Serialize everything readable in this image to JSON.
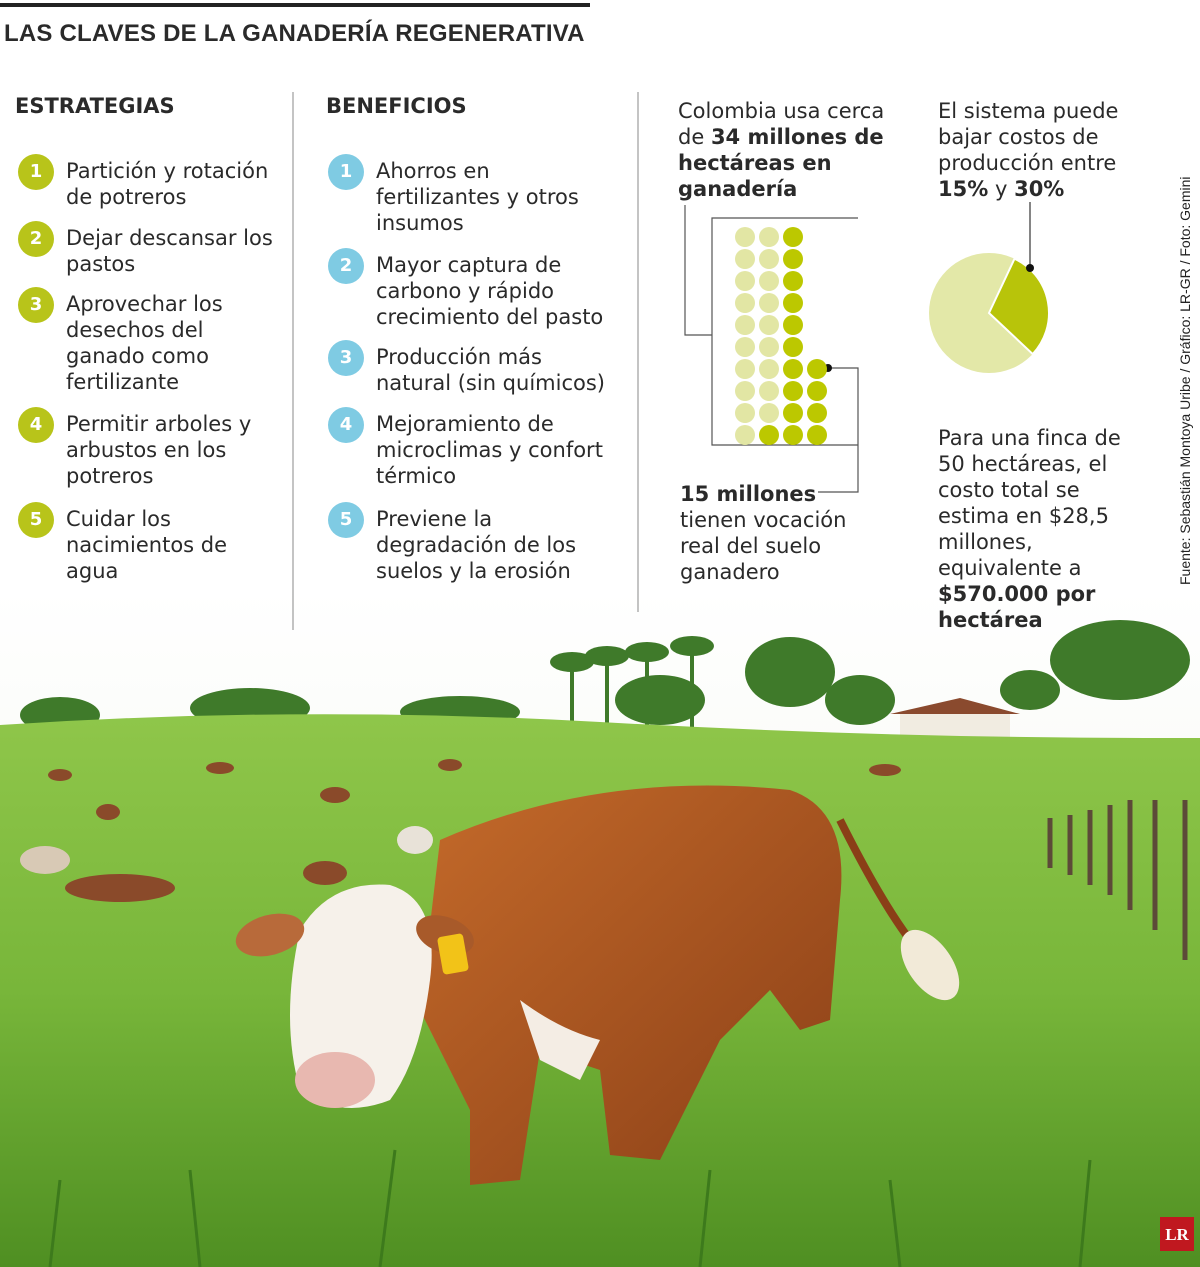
{
  "title": "LAS CLAVES DE LA GANADERÍA REGENERATIVA",
  "strategies": {
    "heading": "ESTRATEGIAS",
    "items": [
      {
        "number": "1",
        "text": "Partición y rotación de potreros"
      },
      {
        "number": "2",
        "text": "Dejar descansar los pastos"
      },
      {
        "number": "3",
        "text": "Aprovechar los desechos del ganado como fertilizante"
      },
      {
        "number": "4",
        "text": "Permitir arboles y arbustos en los potreros"
      },
      {
        "number": "5",
        "text": "Cuidar los nacimientos de agua"
      }
    ]
  },
  "benefits": {
    "heading": "BENEFICIOS",
    "items": [
      {
        "number": "1",
        "text": "Ahorros en fertilizantes y otros insumos"
      },
      {
        "number": "2",
        "text": "Mayor captura de carbono y rápido crecimiento del pasto"
      },
      {
        "number": "3",
        "text": "Producción más natural (sin químicos)"
      },
      {
        "number": "4",
        "text": "Mejoramiento de microclimas y confort térmico"
      },
      {
        "number": "5",
        "text": "Previene la degradación de los suelos y la erosión"
      }
    ]
  },
  "land": {
    "text": "Colombia usa cerca de",
    "highlight": "34 millones de hectáreas en ganadería",
    "total_dots": 34,
    "suitable": "15 millones",
    "suitable_text": "tienen vocación real del suelo ganadero",
    "suitable_dots": 15
  },
  "costs": {
    "text": "El sistema puede bajar costos de producción entre",
    "low": "15%",
    "joiner": "y",
    "high": "30%",
    "pie_share": 30
  },
  "farm": {
    "text": "Para una finca de 50 hectáreas, el costo total se estima en $28,5 millones, equivalente a",
    "highlight": "$570.000 por hectárea"
  },
  "credits": "Fuente: Sebastián Montoya Uribe / Gráfico: LR-GR / Foto: Gemini",
  "logo": "LR"
}
